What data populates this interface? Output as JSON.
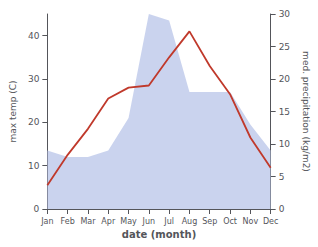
{
  "chart_data": {
    "type": "line",
    "xlabel": "date (month)",
    "ylabel": "max temp (C)",
    "y2label": "med. precipitation (kg/m2)",
    "categories": [
      "Jan",
      "Feb",
      "Mar",
      "Apr",
      "May",
      "Jun",
      "Jul",
      "Aug",
      "Sep",
      "Oct",
      "Nov",
      "Dec"
    ],
    "series": [
      {
        "type": "area",
        "axis": "y2",
        "color": "#b8c4e8",
        "values": [
          9.0,
          8.0,
          8.0,
          9.0,
          14.0,
          30.0,
          29.0,
          18.0,
          18.0,
          18.0,
          13.0,
          9.0
        ]
      },
      {
        "type": "line",
        "color": "#c0392b",
        "values": [
          5.5,
          12.5,
          18.5,
          25.5,
          28.0,
          28.5,
          35.0,
          41.0,
          33.0,
          26.5,
          16.5,
          9.5
        ]
      }
    ],
    "ylim": [
      0,
      45
    ],
    "yticks": [
      0,
      10,
      20,
      30,
      40
    ],
    "y2lim": [
      0,
      30
    ],
    "y2ticks": [
      0,
      5,
      10,
      15,
      20,
      25,
      30
    ],
    "grid": false
  }
}
